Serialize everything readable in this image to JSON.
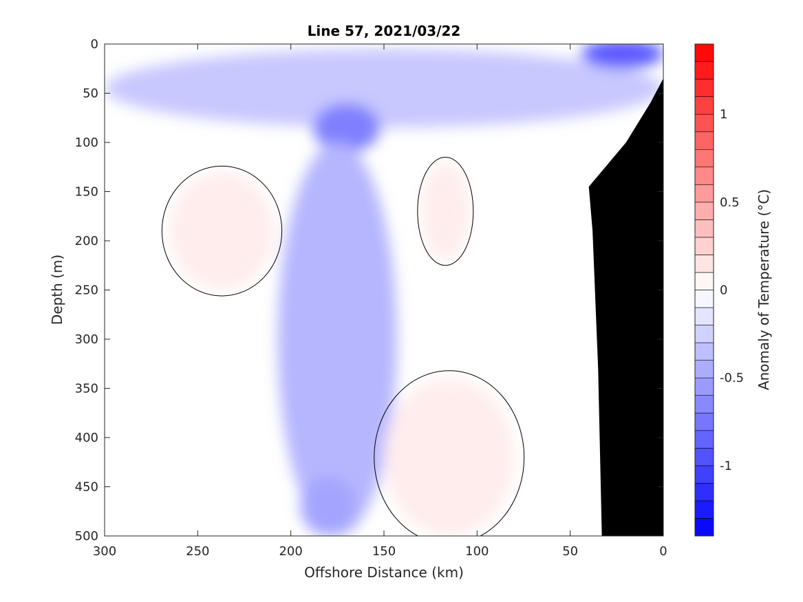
{
  "chart_data": {
    "type": "heatmap",
    "title": "Line 57, 2021/03/22",
    "xlabel": "Offshore Distance (km)",
    "ylabel": "Depth (m)",
    "xlim": [
      300,
      0
    ],
    "ylim": [
      0,
      500
    ],
    "x_reversed": true,
    "y_reversed": true,
    "xticks": [
      "300",
      "250",
      "200",
      "150",
      "100",
      "50",
      "0"
    ],
    "xtick_values": [
      300,
      250,
      200,
      150,
      100,
      50,
      0
    ],
    "yticks": [
      "0",
      "50",
      "100",
      "150",
      "200",
      "250",
      "300",
      "350",
      "400",
      "450",
      "500"
    ],
    "ytick_values": [
      0,
      50,
      100,
      150,
      200,
      250,
      300,
      350,
      400,
      450,
      500
    ],
    "colorbar": {
      "label": "Anomaly of Temperature (°C)",
      "range": [
        -1.4,
        1.4
      ],
      "step": 0.1,
      "ticks": [
        "1",
        "0.5",
        "0",
        "-0.5",
        "-1"
      ],
      "tick_values": [
        1,
        0.5,
        0,
        -0.5,
        -1
      ],
      "negative_color": "#0000ff",
      "zero_color": "#ffffff",
      "positive_color": "#ff0000"
    },
    "contour_level": 0,
    "bathymetry_color": "#000000",
    "bathymetry": [
      {
        "x": 33,
        "depth": 500
      },
      {
        "x": 35,
        "depth": 330
      },
      {
        "x": 38,
        "depth": 190
      },
      {
        "x": 40,
        "depth": 145
      },
      {
        "x": 20,
        "depth": 100
      },
      {
        "x": 7,
        "depth": 60
      },
      {
        "x": 0,
        "depth": 35
      }
    ],
    "anomaly_regions": [
      {
        "name": "surface-cold-band",
        "value": -0.3,
        "x_center": 150,
        "depth_center": 45,
        "x_radius": 150,
        "depth_radius": 40
      },
      {
        "name": "mid-cold-core",
        "value": -0.7,
        "x_center": 170,
        "depth_center": 85,
        "x_radius": 18,
        "depth_radius": 25
      },
      {
        "name": "mid-column-cold-tongue",
        "value": -0.4,
        "x_center": 175,
        "depth_center": 300,
        "x_radius": 32,
        "depth_radius": 200
      },
      {
        "name": "deep-cold-patch",
        "value": -0.5,
        "x_center": 180,
        "depth_center": 470,
        "x_radius": 15,
        "depth_radius": 30
      },
      {
        "name": "nearshore-surface-cold-core",
        "value": -0.9,
        "x_center": 22,
        "depth_center": 10,
        "x_radius": 22,
        "depth_radius": 15
      },
      {
        "name": "offshore-warm-lens",
        "value": 0.1,
        "x_center": 237,
        "depth_center": 190,
        "x_radius": 28,
        "depth_radius": 60
      },
      {
        "name": "central-warm-column",
        "value": 0.1,
        "x_center": 117,
        "depth_center": 170,
        "x_radius": 13,
        "depth_radius": 50
      },
      {
        "name": "deep-warm-region",
        "value": 0.1,
        "x_center": 115,
        "depth_center": 420,
        "x_radius": 35,
        "depth_radius": 80
      }
    ]
  }
}
